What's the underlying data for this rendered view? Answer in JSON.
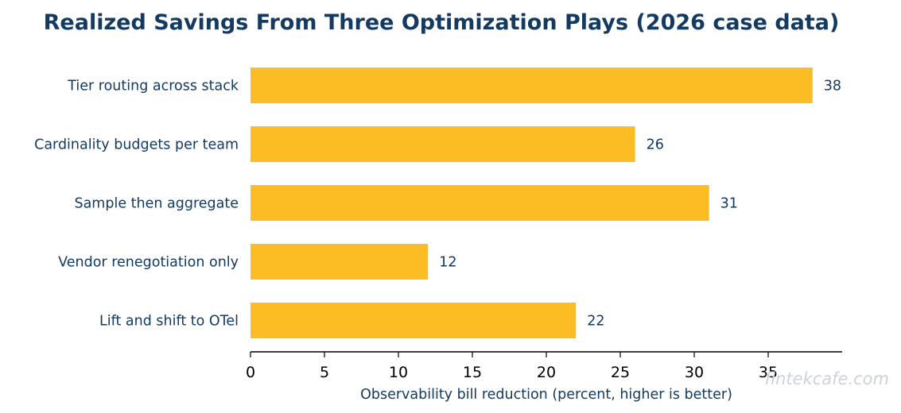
{
  "chart_data": {
    "type": "bar",
    "orientation": "horizontal",
    "title": "Realized Savings From Three Optimization Plays (2026 case data)",
    "xlabel": "Observability bill reduction (percent, higher is better)",
    "ylabel": "",
    "categories": [
      "Tier routing across stack",
      "Cardinality budgets per team",
      "Sample then aggregate",
      "Vendor renegotiation only",
      "Lift and shift to OTel"
    ],
    "values": [
      38,
      26,
      31,
      12,
      22
    ],
    "xlim": [
      0,
      40
    ],
    "xticks": [
      0,
      5,
      10,
      15,
      20,
      25,
      30,
      35
    ],
    "bar_color": "#fbbd23",
    "text_color": "#153a62",
    "grid": false,
    "data_labels": true
  },
  "watermark": "fintekcafe.com"
}
